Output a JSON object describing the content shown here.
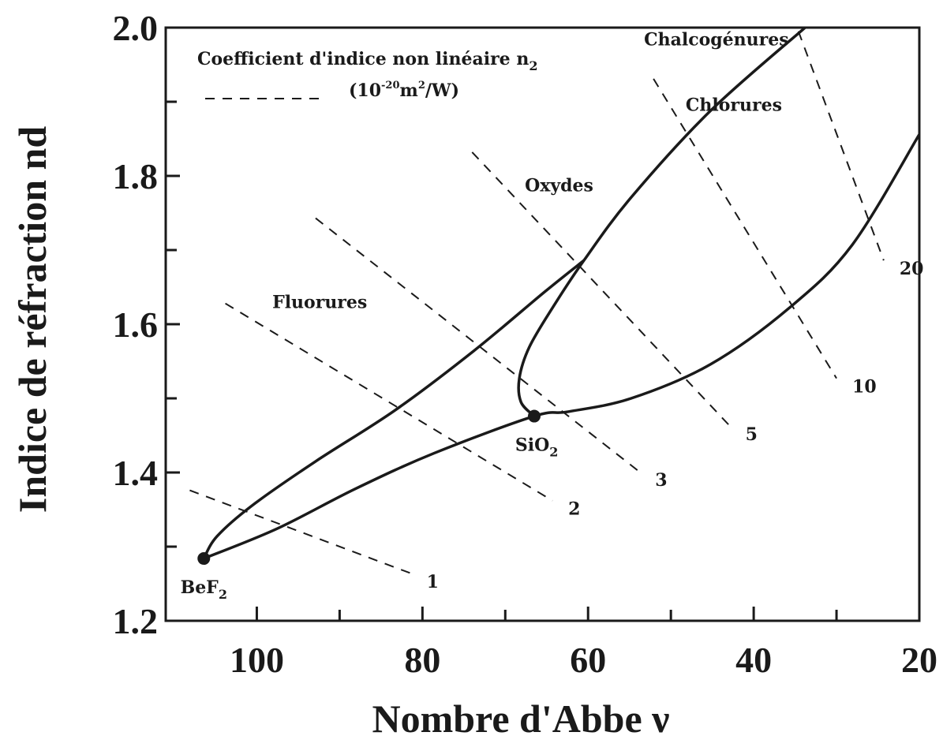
{
  "chart_data": {
    "type": "line",
    "xlabel": "Nombre d'Abbe ν",
    "ylabel": "Indice de réfraction nd",
    "xlim": [
      111,
      20
    ],
    "ylim": [
      1.2,
      2.0
    ],
    "xticks": [
      100,
      80,
      60,
      40,
      20
    ],
    "xminor": [
      90,
      70,
      50,
      30
    ],
    "yticks": [
      1.2,
      1.4,
      1.6,
      1.8,
      {
        "value": 2,
        "label": "2.0"
      }
    ],
    "yminor": [
      1.3,
      1.5,
      1.7,
      1.9
    ],
    "color": "#1a1a1a",
    "curves": [
      {
        "x": [
          106.4,
          104.8,
          100.5,
          92.9,
          83.3,
          73.8,
          65.2,
          60.5
        ],
        "y": [
          1.284,
          1.314,
          1.356,
          1.415,
          1.484,
          1.564,
          1.644,
          1.686
        ]
      },
      {
        "x": [
          33.8,
          45.2,
          54.8,
          60.5,
          64.3,
          67.1,
          68.3,
          68.1,
          66.5
        ],
        "y": [
          2.0,
          1.888,
          1.771,
          1.686,
          1.622,
          1.569,
          1.527,
          1.495,
          1.476
        ]
      },
      {
        "x": [
          106.4,
          97.6,
          88.1,
          78.6,
          66.5,
          62.4,
          54.8,
          45.2,
          35.7,
          28.1,
          20
        ],
        "y": [
          1.284,
          1.324,
          1.378,
          1.426,
          1.476,
          1.482,
          1.5,
          1.546,
          1.622,
          1.707,
          1.856
        ]
      }
    ],
    "iso_lines": [
      {
        "label": "1",
        "x": [
          108.1,
          81.4
        ],
        "y": [
          1.376,
          1.264
        ]
      },
      {
        "label": "2",
        "x": [
          103.8,
          64.3
        ],
        "y": [
          1.628,
          1.362
        ]
      },
      {
        "label": "3",
        "x": [
          92.9,
          53.8
        ],
        "y": [
          1.743,
          1.401
        ]
      },
      {
        "label": "5",
        "x": [
          74.0,
          42.9
        ],
        "y": [
          1.832,
          1.463
        ]
      },
      {
        "label": "10",
        "x": [
          52.1,
          30.0
        ],
        "y": [
          1.931,
          1.527
        ]
      },
      {
        "label": "20",
        "x": [
          34.6,
          24.3
        ],
        "y": [
          1.995,
          1.686
        ]
      }
    ],
    "points": [
      {
        "x": 106.4,
        "y": 1.284,
        "label": "BeF",
        "sub": "2",
        "lx": 106.4,
        "ly": 1.237
      },
      {
        "x": 66.5,
        "y": 1.476,
        "label": "SiO",
        "sub": "2",
        "lx": 66.2,
        "ly": 1.429
      }
    ],
    "annotations": [
      {
        "text": "Fluorures",
        "x": 92.4,
        "y": 1.622
      },
      {
        "text": "Oxydes",
        "x": 63.5,
        "y": 1.779
      },
      {
        "text": "Chlorures",
        "x": 42.4,
        "y": 1.888
      },
      {
        "text": "Chalcogénures",
        "x": 44.5,
        "y": 1.976
      }
    ],
    "legend": {
      "title": "Coefficient d'indice non linéaire  n",
      "title_sub": "2",
      "unit": [
        "(10",
        "-20",
        "m",
        "2",
        "/W)"
      ]
    }
  }
}
